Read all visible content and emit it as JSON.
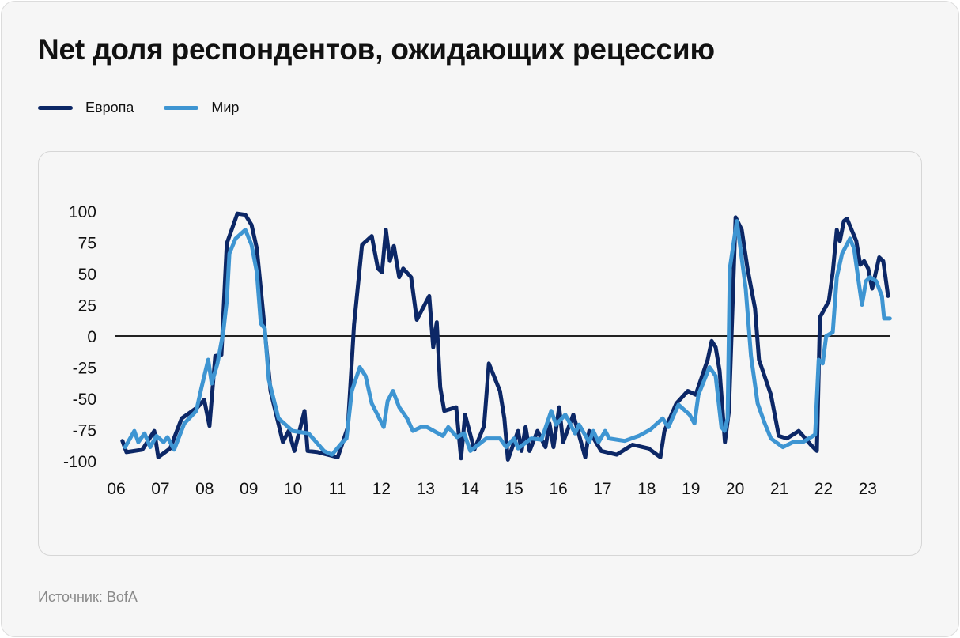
{
  "title": "Net доля респондентов, ожидающих рецессию",
  "source": "Источник: BofA",
  "colors": {
    "europe": "#0c2766",
    "world": "#3e95d2",
    "zero_line": "#222222"
  },
  "chart_data": {
    "type": "line",
    "title": "Net доля респондентов, ожидающих рецессию",
    "xlabel": "",
    "ylabel": "",
    "ylim": [
      -100,
      100
    ],
    "xlim": [
      2006,
      2023.5
    ],
    "yticks": [
      100,
      75,
      50,
      25,
      0,
      -25,
      -50,
      -75,
      -100
    ],
    "xticks": [
      {
        "year": 2006,
        "label": "06"
      },
      {
        "year": 2007,
        "label": "07"
      },
      {
        "year": 2008,
        "label": "08"
      },
      {
        "year": 2009,
        "label": "09"
      },
      {
        "year": 2010,
        "label": "10"
      },
      {
        "year": 2011,
        "label": "11"
      },
      {
        "year": 2012,
        "label": "12"
      },
      {
        "year": 2013,
        "label": "13"
      },
      {
        "year": 2014,
        "label": "14"
      },
      {
        "year": 2015,
        "label": "15"
      },
      {
        "year": 2016,
        "label": "16"
      },
      {
        "year": 2017,
        "label": "17"
      },
      {
        "year": 2018,
        "label": "18"
      },
      {
        "year": 2019,
        "label": "19"
      },
      {
        "year": 2020,
        "label": "20"
      },
      {
        "year": 2021,
        "label": "21"
      },
      {
        "year": 2022,
        "label": "22"
      },
      {
        "year": 2023,
        "label": "23"
      }
    ],
    "legend_position": "top-left",
    "series": [
      {
        "name": "Европа",
        "color": "#0c2766",
        "points": [
          [
            2006.14,
            -84
          ],
          [
            2006.23,
            -93
          ],
          [
            2006.59,
            -91
          ],
          [
            2006.86,
            -76
          ],
          [
            2006.95,
            -97
          ],
          [
            2007.22,
            -90
          ],
          [
            2007.48,
            -66
          ],
          [
            2007.84,
            -57
          ],
          [
            2007.99,
            -51
          ],
          [
            2008.11,
            -72
          ],
          [
            2008.24,
            -16
          ],
          [
            2008.38,
            -15
          ],
          [
            2008.5,
            74
          ],
          [
            2008.74,
            98
          ],
          [
            2008.92,
            97
          ],
          [
            2009.06,
            89
          ],
          [
            2009.18,
            70
          ],
          [
            2009.33,
            16
          ],
          [
            2009.49,
            -44
          ],
          [
            2009.77,
            -85
          ],
          [
            2009.9,
            -76
          ],
          [
            2010.03,
            -92
          ],
          [
            2010.26,
            -60
          ],
          [
            2010.33,
            -92
          ],
          [
            2010.56,
            -93
          ],
          [
            2011.01,
            -97
          ],
          [
            2011.24,
            -73
          ],
          [
            2011.38,
            9
          ],
          [
            2011.56,
            73
          ],
          [
            2011.78,
            80
          ],
          [
            2011.92,
            54
          ],
          [
            2012.01,
            51
          ],
          [
            2012.1,
            85
          ],
          [
            2012.19,
            60
          ],
          [
            2012.28,
            72
          ],
          [
            2012.4,
            47
          ],
          [
            2012.49,
            54
          ],
          [
            2012.67,
            47
          ],
          [
            2012.8,
            13
          ],
          [
            2013.08,
            32
          ],
          [
            2013.17,
            -9
          ],
          [
            2013.25,
            11
          ],
          [
            2013.33,
            -41
          ],
          [
            2013.42,
            -60
          ],
          [
            2013.69,
            -57
          ],
          [
            2013.8,
            -98
          ],
          [
            2013.89,
            -63
          ],
          [
            2014.1,
            -91
          ],
          [
            2014.32,
            -72
          ],
          [
            2014.43,
            -22
          ],
          [
            2014.68,
            -44
          ],
          [
            2014.78,
            -66
          ],
          [
            2014.86,
            -99
          ],
          [
            2015.09,
            -76
          ],
          [
            2015.17,
            -92
          ],
          [
            2015.26,
            -73
          ],
          [
            2015.35,
            -92
          ],
          [
            2015.53,
            -76
          ],
          [
            2015.71,
            -89
          ],
          [
            2015.8,
            -70
          ],
          [
            2015.89,
            -89
          ],
          [
            2016.02,
            -57
          ],
          [
            2016.11,
            -85
          ],
          [
            2016.34,
            -63
          ],
          [
            2016.61,
            -97
          ],
          [
            2016.7,
            -76
          ],
          [
            2016.97,
            -92
          ],
          [
            2017.32,
            -95
          ],
          [
            2017.68,
            -87
          ],
          [
            2018.04,
            -90
          ],
          [
            2018.31,
            -97
          ],
          [
            2018.4,
            -76
          ],
          [
            2018.67,
            -54
          ],
          [
            2018.93,
            -44
          ],
          [
            2019.11,
            -47
          ],
          [
            2019.38,
            -19
          ],
          [
            2019.47,
            -4
          ],
          [
            2019.56,
            -9
          ],
          [
            2019.65,
            -28
          ],
          [
            2019.77,
            -85
          ],
          [
            2019.86,
            -60
          ],
          [
            2020.01,
            95
          ],
          [
            2020.15,
            85
          ],
          [
            2020.28,
            54
          ],
          [
            2020.45,
            22
          ],
          [
            2020.54,
            -19
          ],
          [
            2020.81,
            -47
          ],
          [
            2020.99,
            -80
          ],
          [
            2021.17,
            -82
          ],
          [
            2021.44,
            -76
          ],
          [
            2021.71,
            -87
          ],
          [
            2021.85,
            -92
          ],
          [
            2021.92,
            15
          ],
          [
            2022.12,
            28
          ],
          [
            2022.21,
            51
          ],
          [
            2022.3,
            85
          ],
          [
            2022.37,
            76
          ],
          [
            2022.46,
            92
          ],
          [
            2022.53,
            94
          ],
          [
            2022.74,
            76
          ],
          [
            2022.83,
            57
          ],
          [
            2022.92,
            60
          ],
          [
            2023.01,
            54
          ],
          [
            2023.1,
            38
          ],
          [
            2023.26,
            63
          ],
          [
            2023.35,
            60
          ],
          [
            2023.46,
            32
          ]
        ]
      },
      {
        "name": "Мир",
        "color": "#3e95d2",
        "points": [
          [
            2006.2,
            -89
          ],
          [
            2006.41,
            -76
          ],
          [
            2006.5,
            -85
          ],
          [
            2006.64,
            -78
          ],
          [
            2006.77,
            -89
          ],
          [
            2006.91,
            -80
          ],
          [
            2007.07,
            -85
          ],
          [
            2007.16,
            -81
          ],
          [
            2007.31,
            -91
          ],
          [
            2007.54,
            -70
          ],
          [
            2007.81,
            -60
          ],
          [
            2007.93,
            -41
          ],
          [
            2008.08,
            -19
          ],
          [
            2008.16,
            -38
          ],
          [
            2008.29,
            -22
          ],
          [
            2008.42,
            3
          ],
          [
            2008.5,
            28
          ],
          [
            2008.56,
            66
          ],
          [
            2008.7,
            78
          ],
          [
            2008.92,
            85
          ],
          [
            2009.06,
            73
          ],
          [
            2009.18,
            51
          ],
          [
            2009.27,
            10
          ],
          [
            2009.36,
            6
          ],
          [
            2009.45,
            -35
          ],
          [
            2009.67,
            -66
          ],
          [
            2009.99,
            -76
          ],
          [
            2010.35,
            -78
          ],
          [
            2010.7,
            -92
          ],
          [
            2010.88,
            -95
          ],
          [
            2011.12,
            -85
          ],
          [
            2011.21,
            -82
          ],
          [
            2011.33,
            -44
          ],
          [
            2011.51,
            -25
          ],
          [
            2011.64,
            -32
          ],
          [
            2011.78,
            -54
          ],
          [
            2012.05,
            -73
          ],
          [
            2012.14,
            -52
          ],
          [
            2012.26,
            -44
          ],
          [
            2012.4,
            -57
          ],
          [
            2012.58,
            -66
          ],
          [
            2012.71,
            -76
          ],
          [
            2012.89,
            -73
          ],
          [
            2013.03,
            -73
          ],
          [
            2013.39,
            -80
          ],
          [
            2013.51,
            -73
          ],
          [
            2013.71,
            -81
          ],
          [
            2013.87,
            -78
          ],
          [
            2014.01,
            -92
          ],
          [
            2014.37,
            -82
          ],
          [
            2014.68,
            -82
          ],
          [
            2014.82,
            -89
          ],
          [
            2015.0,
            -82
          ],
          [
            2015.09,
            -90
          ],
          [
            2015.39,
            -82
          ],
          [
            2015.62,
            -83
          ],
          [
            2015.84,
            -60
          ],
          [
            2015.95,
            -71
          ],
          [
            2016.16,
            -63
          ],
          [
            2016.38,
            -78
          ],
          [
            2016.47,
            -71
          ],
          [
            2016.7,
            -85
          ],
          [
            2016.79,
            -76
          ],
          [
            2016.91,
            -85
          ],
          [
            2017.06,
            -76
          ],
          [
            2017.15,
            -82
          ],
          [
            2017.5,
            -84
          ],
          [
            2017.82,
            -80
          ],
          [
            2018.08,
            -75
          ],
          [
            2018.36,
            -66
          ],
          [
            2018.49,
            -73
          ],
          [
            2018.72,
            -55
          ],
          [
            2018.97,
            -63
          ],
          [
            2019.08,
            -70
          ],
          [
            2019.17,
            -47
          ],
          [
            2019.42,
            -25
          ],
          [
            2019.56,
            -32
          ],
          [
            2019.69,
            -73
          ],
          [
            2019.76,
            -76
          ],
          [
            2019.83,
            -66
          ],
          [
            2019.88,
            54
          ],
          [
            2020.04,
            92
          ],
          [
            2020.24,
            38
          ],
          [
            2020.36,
            -16
          ],
          [
            2020.51,
            -54
          ],
          [
            2020.67,
            -70
          ],
          [
            2020.81,
            -82
          ],
          [
            2021.08,
            -89
          ],
          [
            2021.31,
            -85
          ],
          [
            2021.53,
            -85
          ],
          [
            2021.81,
            -79
          ],
          [
            2021.89,
            -19
          ],
          [
            2021.98,
            -22
          ],
          [
            2022.06,
            0
          ],
          [
            2022.21,
            3
          ],
          [
            2022.3,
            47
          ],
          [
            2022.42,
            66
          ],
          [
            2022.6,
            78
          ],
          [
            2022.69,
            70
          ],
          [
            2022.78,
            47
          ],
          [
            2022.87,
            25
          ],
          [
            2022.96,
            44
          ],
          [
            2023.05,
            47
          ],
          [
            2023.19,
            44
          ],
          [
            2023.32,
            32
          ],
          [
            2023.37,
            14
          ],
          [
            2023.5,
            14
          ]
        ]
      }
    ]
  }
}
